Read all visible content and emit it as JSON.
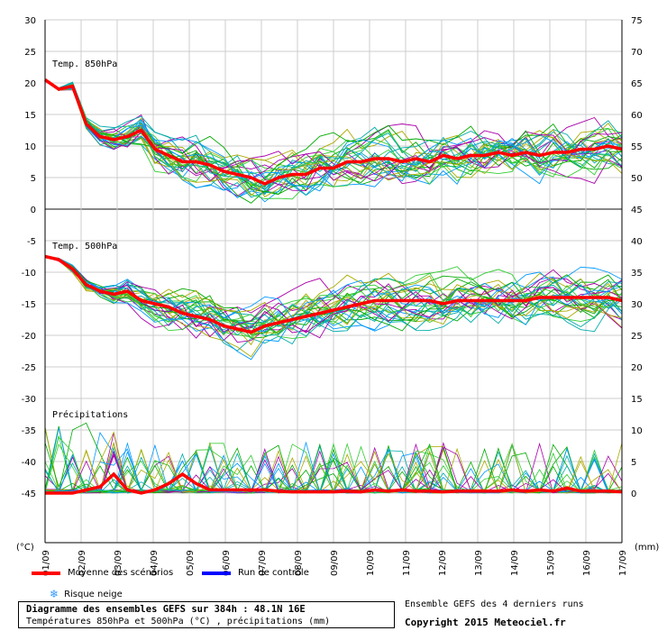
{
  "chart_data": {
    "type": "line",
    "title": "Diagramme des ensembles GEFS sur 384h : 48.1N 16E",
    "subtitle": "Températures 850hPa et 500hPa (°C) , précipitations (mm)",
    "x_labels": [
      "01/09",
      "02/09",
      "03/09",
      "04/09",
      "05/09",
      "06/09",
      "07/09",
      "08/09",
      "09/09",
      "10/09",
      "11/09",
      "12/09",
      "13/09",
      "14/09",
      "15/09",
      "16/09",
      "17/09"
    ],
    "left_axis": {
      "unit": "(°C)",
      "ticks": [
        30,
        25,
        20,
        15,
        10,
        5,
        0,
        -5,
        -10,
        -15,
        -20,
        -25,
        -30,
        -35,
        -40,
        -45
      ]
    },
    "right_axis": {
      "unit": "(mm)",
      "ticks": [
        75,
        70,
        65,
        60,
        55,
        50,
        45,
        40,
        35,
        30,
        25,
        20,
        15,
        10,
        5,
        0
      ]
    },
    "grid": true,
    "panel_labels": {
      "t850": "Temp. 850hPa",
      "t500": "Temp. 500hPa",
      "precip": "Précipitations"
    },
    "series": [
      {
        "name": "Moyenne des scénarios",
        "color": "#ff0000",
        "t850_mean": [
          20.5,
          19.0,
          19.5,
          13.5,
          11.5,
          11.0,
          11.5,
          12.5,
          9.5,
          8.5,
          7.5,
          7.5,
          7.0,
          6.0,
          5.5,
          5.0,
          4.0,
          5.0,
          5.5,
          5.5,
          6.5,
          6.5,
          7.5,
          7.5,
          8.0,
          8.0,
          7.5,
          8.0,
          7.5,
          8.5,
          8.0,
          8.5,
          8.5,
          9.0,
          8.5,
          9.0,
          8.5,
          9.0,
          9.0,
          9.5,
          9.5,
          10.0,
          9.5
        ],
        "t500_mean": [
          -7.5,
          -8.0,
          -9.5,
          -12.0,
          -13.0,
          -13.5,
          -13.0,
          -14.5,
          -15.0,
          -15.5,
          -16.5,
          -17.0,
          -17.5,
          -18.5,
          -19.0,
          -19.5,
          -18.5,
          -18.0,
          -17.5,
          -17.0,
          -16.5,
          -16.0,
          -15.5,
          -15.0,
          -14.5,
          -14.5,
          -14.5,
          -14.5,
          -14.5,
          -15.0,
          -14.5,
          -14.5,
          -14.5,
          -14.5,
          -14.5,
          -14.5,
          -14.0,
          -14.0,
          -14.0,
          -14.0,
          -14.0,
          -14.0,
          -14.5
        ],
        "precip_mean": [
          0,
          0,
          0,
          0.5,
          1,
          3,
          0.5,
          0,
          0.5,
          1.5,
          3,
          1.5,
          0.5,
          0.5,
          0.5,
          0.5,
          0.5,
          0.3,
          0.2,
          0.2,
          0.2,
          0.2,
          0.3,
          0.2,
          0.5,
          0.3,
          0.5,
          0.3,
          0.3,
          0.2,
          0.3,
          0.3,
          0.3,
          0.3,
          0.5,
          0.3,
          0.5,
          0.3,
          0.8,
          0.3,
          0.3,
          0.3,
          0.2
        ]
      },
      {
        "name": "Run de contrôle",
        "color": "#0000ff"
      }
    ],
    "members_colors": [
      "#00aa00",
      "#aa00aa",
      "#00aaaa",
      "#aaaa00",
      "#0099ff",
      "#33cc33"
    ],
    "notes": {
      "risque_neige": "Risque neige",
      "ensemble_note": "Ensemble GEFS des 4 derniers runs",
      "copyright": "Copyright 2015 Meteociel.fr"
    }
  }
}
